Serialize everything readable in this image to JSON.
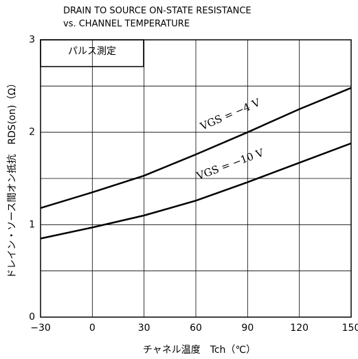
{
  "chart_data": {
    "type": "line",
    "title": "DRAIN TO SOURCE ON-STATE RESISTANCE",
    "subtitle": "vs. CHANNEL TEMPERATURE",
    "x_label": "チャネル温度　Tch（℃）",
    "y_label": "ドレイン・ソース間オン抵抗　RDS(on)（Ω）",
    "annotation": "パルス測定",
    "x": [
      -30,
      0,
      30,
      60,
      90,
      120,
      150
    ],
    "series": [
      {
        "name": "VGS = −4 V",
        "color": "#000000",
        "values": [
          1.18,
          1.35,
          1.53,
          1.76,
          2.0,
          2.25,
          2.48
        ]
      },
      {
        "name": "VGS = −10 V",
        "color": "#000000",
        "values": [
          0.85,
          0.97,
          1.1,
          1.26,
          1.46,
          1.67,
          1.88
        ]
      }
    ],
    "xlim": [
      -30,
      150
    ],
    "xticks": [
      {
        "value": -30,
        "label": "−30"
      },
      0,
      30,
      60,
      90,
      120,
      150
    ],
    "ylim": [
      0,
      3
    ],
    "yticks": [
      0,
      1,
      2,
      3
    ],
    "yminor": [
      0.5,
      1.5,
      2.5
    ],
    "grid": true
  }
}
